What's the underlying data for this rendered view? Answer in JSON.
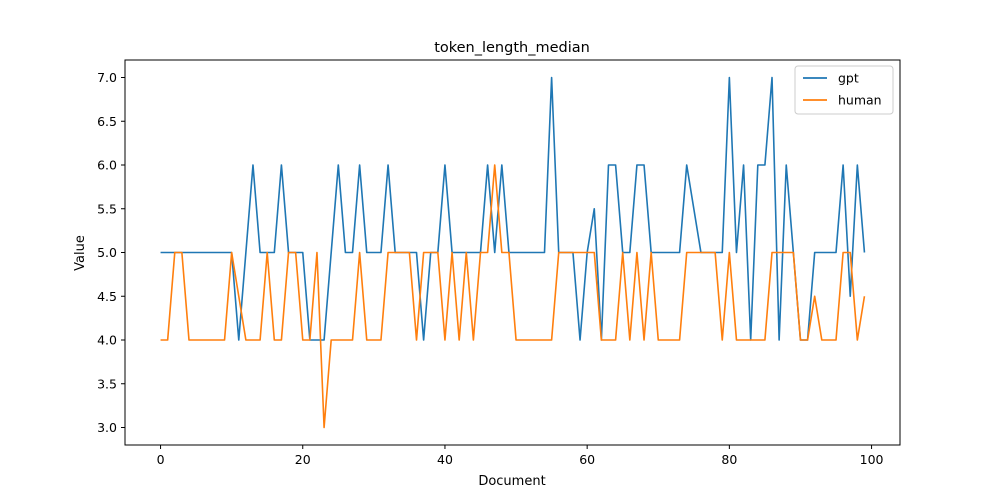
{
  "chart_data": {
    "type": "line",
    "title": "token_length_median",
    "xlabel": "Document",
    "ylabel": "Value",
    "xlim": [
      -5,
      104
    ],
    "ylim": [
      2.8,
      7.2
    ],
    "xticks": [
      0,
      20,
      40,
      60,
      80,
      100
    ],
    "yticks": [
      3.0,
      3.5,
      4.0,
      4.5,
      5.0,
      5.5,
      6.0,
      6.5,
      7.0
    ],
    "grid": false,
    "legend_position": "top-right",
    "x": [
      0,
      1,
      2,
      3,
      4,
      5,
      6,
      7,
      8,
      9,
      10,
      11,
      12,
      13,
      14,
      15,
      16,
      17,
      18,
      19,
      20,
      21,
      22,
      23,
      24,
      25,
      26,
      27,
      28,
      29,
      30,
      31,
      32,
      33,
      34,
      35,
      36,
      37,
      38,
      39,
      40,
      41,
      42,
      43,
      44,
      45,
      46,
      47,
      48,
      49,
      50,
      51,
      52,
      53,
      54,
      55,
      56,
      57,
      58,
      59,
      60,
      61,
      62,
      63,
      64,
      65,
      66,
      67,
      68,
      69,
      70,
      71,
      72,
      73,
      74,
      75,
      76,
      77,
      78,
      79,
      80,
      81,
      82,
      83,
      84,
      85,
      86,
      87,
      88,
      89,
      90,
      91,
      92,
      93,
      94,
      95,
      96,
      97,
      98,
      99
    ],
    "series": [
      {
        "name": "gpt",
        "color": "#1f77b4",
        "values": [
          5,
          5,
          5,
          5,
          5,
          5,
          5,
          5,
          5,
          5,
          5,
          4,
          5,
          6,
          5,
          5,
          5,
          6,
          5,
          5,
          5,
          4,
          4,
          4,
          5,
          6,
          5,
          5,
          6,
          5,
          5,
          5,
          6,
          5,
          5,
          5,
          5,
          4,
          5,
          5,
          6,
          5,
          5,
          5,
          5,
          5,
          6,
          5,
          6,
          5,
          5,
          5,
          5,
          5,
          5,
          7,
          5,
          5,
          5,
          4,
          5,
          5.5,
          4,
          6,
          6,
          5,
          5,
          6,
          6,
          5,
          5,
          5,
          5,
          5,
          6,
          5.5,
          5,
          5,
          5,
          5,
          7,
          5,
          6,
          4,
          6,
          6,
          7,
          4,
          6,
          5,
          4,
          4,
          5,
          5,
          5,
          5,
          6,
          4.5,
          6,
          5
        ]
      },
      {
        "name": "human",
        "color": "#ff7f0e",
        "values": [
          4,
          4,
          5,
          5,
          4,
          4,
          4,
          4,
          4,
          4,
          5,
          4.5,
          4,
          4,
          4,
          5,
          4,
          4,
          5,
          5,
          4,
          4,
          5,
          3,
          4,
          4,
          4,
          4,
          5,
          4,
          4,
          4,
          5,
          5,
          5,
          5,
          4,
          5,
          5,
          5,
          4,
          5,
          4,
          5,
          4,
          5,
          5,
          6,
          5,
          5,
          4,
          4,
          4,
          4,
          4,
          4,
          5,
          5,
          5,
          5,
          5,
          5,
          4,
          4,
          4,
          5,
          4,
          5,
          4,
          5,
          4,
          4,
          4,
          4,
          5,
          5,
          5,
          5,
          5,
          4,
          5,
          4,
          4,
          4,
          4,
          4,
          5,
          5,
          5,
          5,
          4,
          4,
          4.5,
          4,
          4,
          4,
          5,
          5,
          4,
          4.5
        ]
      }
    ]
  }
}
